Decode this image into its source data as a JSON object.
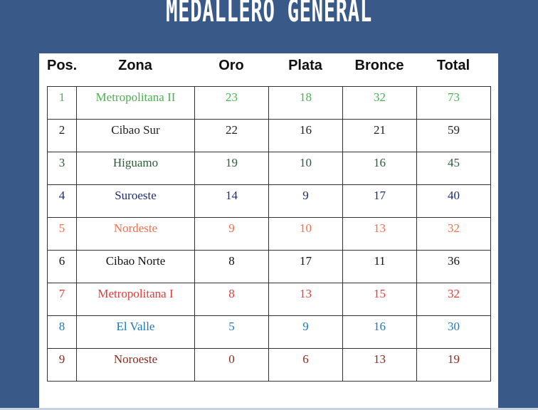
{
  "title": "MEDALLERO GENERAL",
  "headers": [
    "Pos.",
    "Zona",
    "Oro",
    "Plata",
    "Bronce",
    "Total"
  ],
  "rows": [
    {
      "pos": "1",
      "zona": "Metropolitana II",
      "oro": "23",
      "plata": "18",
      "bronce": "32",
      "total": "73",
      "color": "#4caf50"
    },
    {
      "pos": "2",
      "zona": "Cibao Sur",
      "oro": "22",
      "plata": "16",
      "bronce": "21",
      "total": "59",
      "color": "#222222"
    },
    {
      "pos": "3",
      "zona": "Higuamo",
      "oro": "19",
      "plata": "10",
      "bronce": "16",
      "total": "45",
      "color": "#2e5b3a"
    },
    {
      "pos": "4",
      "zona": "Suroeste",
      "oro": "14",
      "plata": "9",
      "bronce": "17",
      "total": "40",
      "color": "#1f2d6b"
    },
    {
      "pos": "5",
      "zona": "Nordeste",
      "oro": "9",
      "plata": "10",
      "bronce": "13",
      "total": "32",
      "color": "#f07048"
    },
    {
      "pos": "6",
      "zona": "Cibao Norte",
      "oro": "8",
      "plata": "17",
      "bronce": "11",
      "total": "36",
      "color": "#111111"
    },
    {
      "pos": "7",
      "zona": "Metropolitana I",
      "oro": "8",
      "plata": "13",
      "bronce": "15",
      "total": "32",
      "color": "#e53935"
    },
    {
      "pos": "8",
      "zona": "El Valle",
      "oro": "5",
      "plata": "9",
      "bronce": "16",
      "total": "30",
      "color": "#1f78bd"
    },
    {
      "pos": "9",
      "zona": "Noroeste",
      "oro": "0",
      "plata": "6",
      "bronce": "13",
      "total": "19",
      "color": "#8b2a1e"
    }
  ]
}
